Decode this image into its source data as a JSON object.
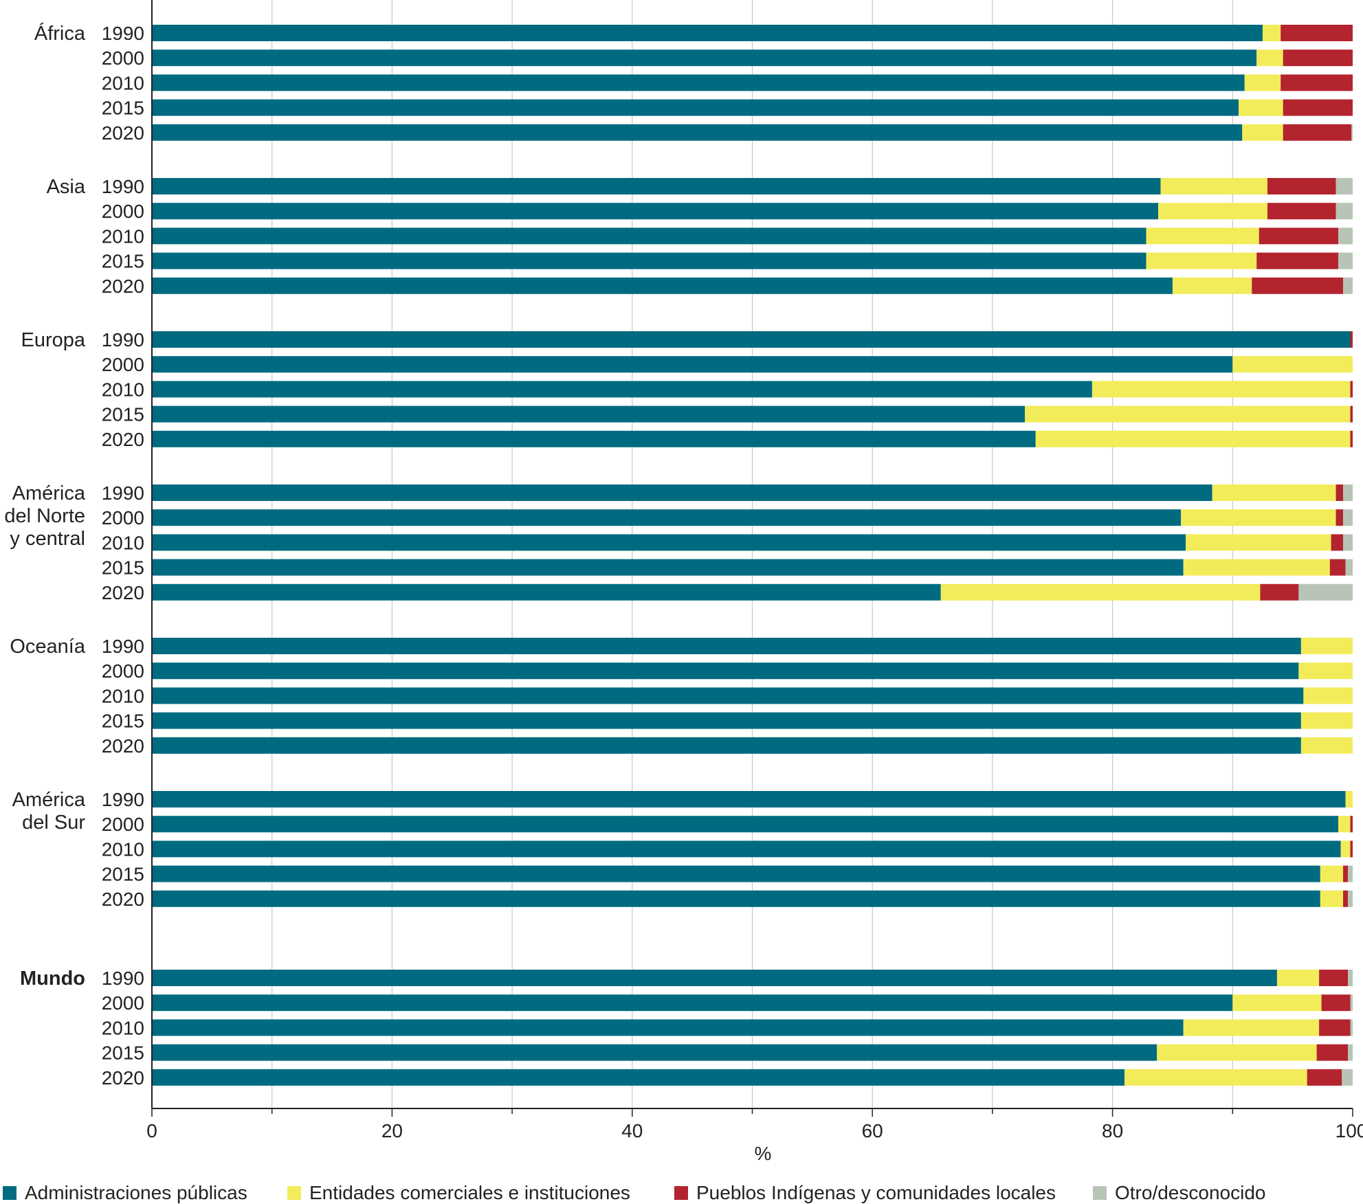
{
  "chart_data": {
    "type": "bar",
    "orientation": "horizontal",
    "stacked": true,
    "xlabel": "%",
    "xlim": [
      0,
      100
    ],
    "x_ticks": [
      "0",
      "20",
      "40",
      "60",
      "80",
      "100"
    ],
    "grid": "vertical gridlines every 10",
    "legend_position": "bottom",
    "colors": {
      "Administraciones públicas": "#006b80",
      "Entidades comerciales e instituciones": "#f2ec5a",
      "Pueblos Indígenas y comunidades locales": "#b3242f",
      "Otro/desconocido": "#b8c4b6"
    },
    "series_names": [
      "Administraciones públicas",
      "Entidades comerciales e instituciones",
      "Pueblos Indígenas y comunidades locales",
      "Otro/desconocido"
    ],
    "groups": [
      {
        "region_lines": [
          "África"
        ],
        "bold": false,
        "rows": [
          {
            "year": "1990",
            "values": [
              92.5,
              1.5,
              6.0,
              0.0
            ]
          },
          {
            "year": "2000",
            "values": [
              92.0,
              2.2,
              5.8,
              0.0
            ]
          },
          {
            "year": "2010",
            "values": [
              91.0,
              3.0,
              6.0,
              0.0
            ]
          },
          {
            "year": "2015",
            "values": [
              90.5,
              3.7,
              5.8,
              0.0
            ]
          },
          {
            "year": "2020",
            "values": [
              90.8,
              3.4,
              5.7,
              0.1
            ]
          }
        ]
      },
      {
        "region_lines": [
          "Asia"
        ],
        "bold": false,
        "rows": [
          {
            "year": "1990",
            "values": [
              84.0,
              8.9,
              5.7,
              1.4
            ]
          },
          {
            "year": "2000",
            "values": [
              83.8,
              9.1,
              5.7,
              1.4
            ]
          },
          {
            "year": "2010",
            "values": [
              82.8,
              9.4,
              6.6,
              1.2
            ]
          },
          {
            "year": "2015",
            "values": [
              82.8,
              9.2,
              6.8,
              1.2
            ]
          },
          {
            "year": "2020",
            "values": [
              85.0,
              6.6,
              7.6,
              0.8
            ]
          }
        ]
      },
      {
        "region_lines": [
          "Europa"
        ],
        "bold": false,
        "rows": [
          {
            "year": "1990",
            "values": [
              99.8,
              0.0,
              0.2,
              0.0
            ]
          },
          {
            "year": "2000",
            "values": [
              90.0,
              10.0,
              0.0,
              0.0
            ]
          },
          {
            "year": "2010",
            "values": [
              78.3,
              21.5,
              0.2,
              0.0
            ]
          },
          {
            "year": "2015",
            "values": [
              72.7,
              27.1,
              0.2,
              0.0
            ]
          },
          {
            "year": "2020",
            "values": [
              73.6,
              26.2,
              0.2,
              0.0
            ]
          }
        ]
      },
      {
        "region_lines": [
          "América",
          "del Norte",
          "y central"
        ],
        "bold": false,
        "rows": [
          {
            "year": "1990",
            "values": [
              88.3,
              10.3,
              0.6,
              0.8
            ]
          },
          {
            "year": "2000",
            "values": [
              85.7,
              12.9,
              0.6,
              0.8
            ]
          },
          {
            "year": "2010",
            "values": [
              86.1,
              12.1,
              1.0,
              0.8
            ]
          },
          {
            "year": "2015",
            "values": [
              85.9,
              12.2,
              1.3,
              0.6
            ]
          },
          {
            "year": "2020",
            "values": [
              65.7,
              26.6,
              3.2,
              4.5
            ]
          }
        ]
      },
      {
        "region_lines": [
          "Oceanía"
        ],
        "bold": false,
        "rows": [
          {
            "year": "1990",
            "values": [
              95.7,
              4.3,
              0.0,
              0.0
            ]
          },
          {
            "year": "2000",
            "values": [
              95.5,
              4.5,
              0.0,
              0.0
            ]
          },
          {
            "year": "2010",
            "values": [
              95.9,
              4.1,
              0.0,
              0.0
            ]
          },
          {
            "year": "2015",
            "values": [
              95.7,
              4.3,
              0.0,
              0.0
            ]
          },
          {
            "year": "2020",
            "values": [
              95.7,
              4.3,
              0.0,
              0.0
            ]
          }
        ]
      },
      {
        "region_lines": [
          "América",
          "del Sur"
        ],
        "bold": false,
        "rows": [
          {
            "year": "1990",
            "values": [
              99.4,
              0.6,
              0.0,
              0.0
            ]
          },
          {
            "year": "2000",
            "values": [
              98.8,
              1.0,
              0.2,
              0.0
            ]
          },
          {
            "year": "2010",
            "values": [
              99.0,
              0.8,
              0.2,
              0.0
            ]
          },
          {
            "year": "2015",
            "values": [
              97.3,
              1.9,
              0.4,
              0.4
            ]
          },
          {
            "year": "2020",
            "values": [
              97.3,
              1.9,
              0.4,
              0.4
            ]
          }
        ]
      },
      {
        "region_lines": [
          "Mundo"
        ],
        "bold": true,
        "rows": [
          {
            "year": "1990",
            "values": [
              93.7,
              3.5,
              2.4,
              0.4
            ]
          },
          {
            "year": "2000",
            "values": [
              90.0,
              7.4,
              2.4,
              0.2
            ]
          },
          {
            "year": "2010",
            "values": [
              85.9,
              11.3,
              2.6,
              0.2
            ]
          },
          {
            "year": "2015",
            "values": [
              83.7,
              13.3,
              2.6,
              0.4
            ]
          },
          {
            "year": "2020",
            "values": [
              81.0,
              15.2,
              2.9,
              0.9
            ]
          }
        ]
      }
    ]
  }
}
